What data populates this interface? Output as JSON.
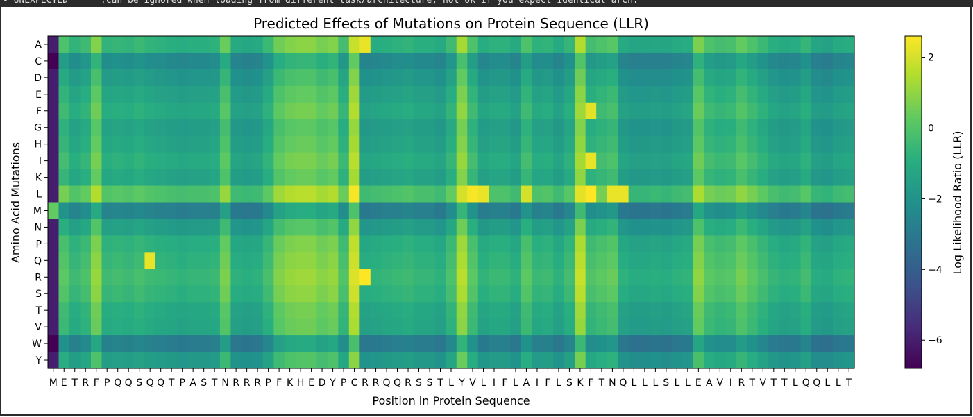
{
  "console": {
    "text": "- UNEXPECTED      :can be ignored when loading from different task/architecture; not ok if you expect identical arch."
  },
  "chart_data": {
    "type": "heatmap",
    "title": "Predicted Effects of Mutations on Protein Sequence (LLR)",
    "xlabel": "Position in Protein Sequence",
    "ylabel": "Amino Acid Mutations",
    "colorbar_label": "Log Likelihood Ratio (LLR)",
    "colormap": "viridis",
    "vmin": -6.8,
    "vmax": 2.6,
    "colorbar_ticks": [
      2,
      0,
      -2,
      -4,
      -6
    ],
    "colorbar_tick_labels": [
      "2",
      "0",
      "−2",
      "−4",
      "−6"
    ],
    "y_categories": [
      "A",
      "C",
      "D",
      "E",
      "F",
      "G",
      "H",
      "I",
      "K",
      "L",
      "M",
      "N",
      "P",
      "Q",
      "R",
      "S",
      "T",
      "V",
      "W",
      "Y"
    ],
    "x_categories": [
      "M",
      "E",
      "T",
      "R",
      "F",
      "P",
      "Q",
      "Q",
      "S",
      "Q",
      "Q",
      "T",
      "P",
      "A",
      "S",
      "T",
      "N",
      "R",
      "R",
      "R",
      "P",
      "F",
      "K",
      "H",
      "E",
      "D",
      "Y",
      "P",
      "C",
      "R",
      "R",
      "Q",
      "Q",
      "R",
      "S",
      "S",
      "T",
      "L",
      "Y",
      "V",
      "L",
      "I",
      "F",
      "L",
      "A",
      "I",
      "F",
      "L",
      "S",
      "K",
      "F",
      "T",
      "N",
      "Q",
      "L",
      "L",
      "L",
      "S",
      "L",
      "L",
      "E",
      "A",
      "V",
      "I",
      "R",
      "T",
      "V",
      "T",
      "T",
      "L",
      "Q",
      "Q",
      "L",
      "L",
      "T"
    ],
    "row_offsets": [
      -0.1,
      -1.6,
      -1.1,
      -0.7,
      -0.4,
      -0.8,
      -0.6,
      -0.3,
      -0.6,
      0.6,
      -2.0,
      -0.9,
      -0.2,
      0.0,
      0.2,
      0.0,
      -0.4,
      -0.5,
      -2.1,
      -1.0
    ],
    "column_base": [
      -6.0,
      0.0,
      -0.6,
      -0.3,
      0.9,
      -0.6,
      -0.5,
      -0.6,
      -0.4,
      -0.6,
      -0.7,
      -0.8,
      -0.9,
      -0.8,
      -0.8,
      -0.7,
      0.5,
      -1.0,
      -1.1,
      -1.0,
      -0.4,
      0.6,
      0.9,
      1.0,
      1.0,
      0.7,
      0.9,
      -0.2,
      1.9,
      -1.0,
      -0.9,
      -0.8,
      -0.7,
      -0.6,
      -0.8,
      -0.8,
      -1.0,
      -0.3,
      1.4,
      0.0,
      -0.9,
      -0.7,
      -0.7,
      -1.0,
      0.0,
      -0.7,
      -0.6,
      -1.0,
      -0.5,
      1.6,
      -0.2,
      0.0,
      0.2,
      -1.0,
      -1.2,
      -1.2,
      -1.1,
      -1.2,
      -1.0,
      -0.9,
      0.8,
      0.0,
      -0.2,
      -0.1,
      0.4,
      0.0,
      -0.4,
      -0.8,
      -1.0,
      -0.9,
      -0.5,
      -1.2,
      -1.3,
      -1.0,
      -0.9
    ],
    "cell_overrides": [
      {
        "row": "Q",
        "col": 9,
        "value": 2.3
      },
      {
        "row": "F",
        "col": 50,
        "value": 2.2
      },
      {
        "row": "I",
        "col": 50,
        "value": 2.3
      },
      {
        "row": "L",
        "col": 50,
        "value": 2.6
      },
      {
        "row": "L",
        "col": 39,
        "value": 2.5
      },
      {
        "row": "L",
        "col": 40,
        "value": 2.3
      },
      {
        "row": "L",
        "col": 52,
        "value": 2.3
      },
      {
        "row": "L",
        "col": 53,
        "value": 2.3
      },
      {
        "row": "L",
        "col": 44,
        "value": 2.0
      },
      {
        "row": "R",
        "col": 29,
        "value": 2.6
      },
      {
        "row": "A",
        "col": 29,
        "value": 2.3
      },
      {
        "row": "W",
        "col": 0,
        "value": -6.8
      },
      {
        "row": "M",
        "col": 0,
        "value": 0.3
      }
    ]
  }
}
